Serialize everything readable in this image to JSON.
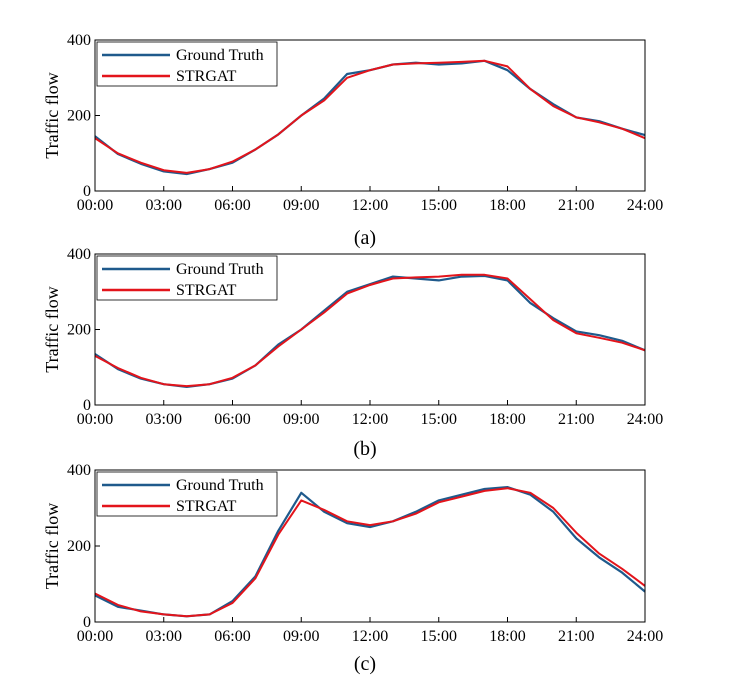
{
  "chart_data": [
    {
      "type": "line",
      "caption": "(a)",
      "ylabel": "Traffic flow",
      "xlabel": "",
      "ylim": [
        0,
        400
      ],
      "yticks": [
        0,
        200,
        400
      ],
      "xticks": [
        "00:00",
        "03:00",
        "06:00",
        "09:00",
        "12:00",
        "15:00",
        "18:00",
        "21:00",
        "24:00"
      ],
      "x_hours": [
        0,
        1,
        2,
        3,
        4,
        5,
        6,
        7,
        8,
        9,
        10,
        11,
        12,
        13,
        14,
        15,
        16,
        17,
        18,
        19,
        20,
        21,
        22,
        23,
        24
      ],
      "legend_position": "top-left",
      "series": [
        {
          "name": "Ground Truth",
          "color": "#1f5a8c",
          "values": [
            145,
            98,
            72,
            52,
            45,
            58,
            75,
            110,
            150,
            200,
            245,
            310,
            320,
            335,
            340,
            335,
            338,
            345,
            320,
            270,
            230,
            195,
            185,
            165,
            148
          ]
        },
        {
          "name": "STRGAT",
          "color": "#e3141b",
          "values": [
            140,
            100,
            75,
            55,
            48,
            58,
            78,
            110,
            150,
            200,
            240,
            300,
            320,
            335,
            338,
            340,
            342,
            345,
            330,
            270,
            225,
            195,
            182,
            165,
            140
          ]
        }
      ]
    },
    {
      "type": "line",
      "caption": "(b)",
      "ylabel": "Traffic flow",
      "xlabel": "",
      "ylim": [
        0,
        400
      ],
      "yticks": [
        0,
        200,
        400
      ],
      "xticks": [
        "00:00",
        "03:00",
        "06:00",
        "09:00",
        "12:00",
        "15:00",
        "18:00",
        "21:00",
        "24:00"
      ],
      "x_hours": [
        0,
        1,
        2,
        3,
        4,
        5,
        6,
        7,
        8,
        9,
        10,
        11,
        12,
        13,
        14,
        15,
        16,
        17,
        18,
        19,
        20,
        21,
        22,
        23,
        24
      ],
      "legend_position": "top-left",
      "series": [
        {
          "name": "Ground Truth",
          "color": "#1f5a8c",
          "values": [
            135,
            95,
            70,
            55,
            48,
            55,
            70,
            105,
            160,
            200,
            250,
            300,
            320,
            340,
            335,
            330,
            340,
            342,
            330,
            270,
            230,
            195,
            185,
            170,
            145
          ]
        },
        {
          "name": "STRGAT",
          "color": "#e3141b",
          "values": [
            130,
            98,
            72,
            55,
            50,
            55,
            72,
            105,
            155,
            200,
            245,
            295,
            318,
            335,
            338,
            340,
            345,
            345,
            335,
            280,
            225,
            190,
            178,
            165,
            145
          ]
        }
      ]
    },
    {
      "type": "line",
      "caption": "(c)",
      "ylabel": "Traffic flow",
      "xlabel": "",
      "ylim": [
        0,
        400
      ],
      "yticks": [
        0,
        200,
        400
      ],
      "xticks": [
        "00:00",
        "03:00",
        "06:00",
        "09:00",
        "12:00",
        "15:00",
        "18:00",
        "21:00",
        "24:00"
      ],
      "x_hours": [
        0,
        1,
        2,
        3,
        4,
        5,
        6,
        7,
        8,
        9,
        10,
        11,
        12,
        13,
        14,
        15,
        16,
        17,
        18,
        19,
        20,
        21,
        22,
        23,
        24
      ],
      "legend_position": "top-left",
      "series": [
        {
          "name": "Ground Truth",
          "color": "#1f5a8c",
          "values": [
            70,
            40,
            30,
            20,
            15,
            20,
            55,
            120,
            240,
            340,
            290,
            260,
            250,
            265,
            290,
            320,
            335,
            350,
            355,
            335,
            290,
            220,
            170,
            130,
            80
          ]
        },
        {
          "name": "STRGAT",
          "color": "#e3141b",
          "values": [
            75,
            45,
            28,
            20,
            15,
            20,
            50,
            115,
            230,
            320,
            295,
            265,
            255,
            265,
            285,
            315,
            330,
            345,
            352,
            340,
            300,
            235,
            180,
            140,
            95
          ]
        }
      ]
    }
  ]
}
